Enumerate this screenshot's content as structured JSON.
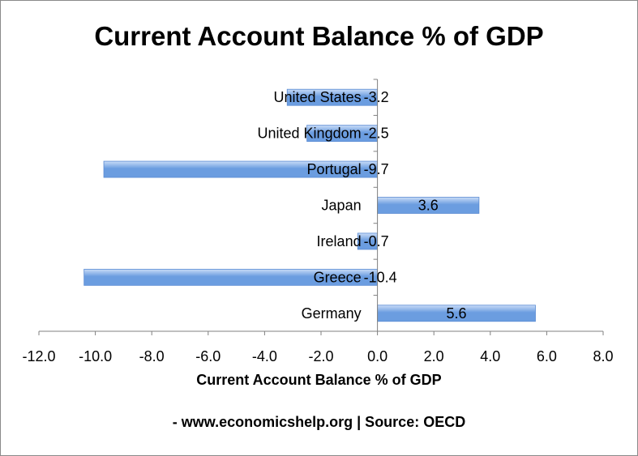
{
  "title": "Current Account Balance % of GDP",
  "footnote": "- www.economicshelp.org | Source: OECD",
  "colors": {
    "bar": "#6b9de0",
    "bar_light": "#c9dcf7",
    "axis": "#808080"
  },
  "chart_data": {
    "type": "bar",
    "orientation": "horizontal",
    "title": "Current Account Balance % of GDP",
    "xlabel": "Current Account Balance % of GDP",
    "ylabel": "",
    "categories": [
      "United States",
      "United Kingdom",
      "Portugal",
      "Japan",
      "Ireland",
      "Greece",
      "Germany"
    ],
    "values": [
      -3.2,
      -2.5,
      -9.7,
      3.6,
      -0.7,
      -10.4,
      5.6
    ],
    "data_labels": [
      "-3.2",
      "-2.5",
      "-9.7",
      "3.6",
      "-0.7",
      "-10.4",
      "5.6"
    ],
    "xlim": [
      -12.0,
      8.0
    ],
    "x_ticks": [
      "-12.0",
      "-10.0",
      "-8.0",
      "-6.0",
      "-4.0",
      "-2.0",
      "0.0",
      "2.0",
      "4.0",
      "6.0",
      "8.0"
    ],
    "grid": false,
    "legend": "none"
  }
}
